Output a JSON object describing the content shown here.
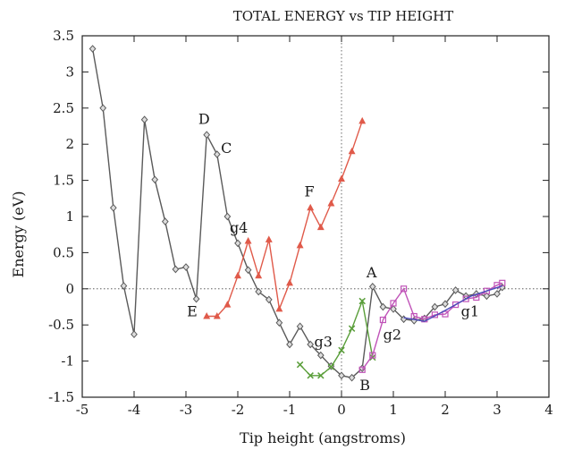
{
  "chart_data": {
    "type": "line",
    "title": "TOTAL ENERGY vs TIP HEIGHT",
    "xlabel": "Tip height (angstroms)",
    "ylabel": "Energy (eV)",
    "xlim": [
      -5,
      4
    ],
    "ylim": [
      -1.5,
      3.5
    ],
    "xticks": [
      -5,
      -4,
      -3,
      -2,
      -1,
      0,
      1,
      2,
      3,
      4
    ],
    "yticks": [
      -1.5,
      -1,
      -0.5,
      0,
      0.5,
      1,
      1.5,
      2,
      2.5,
      3,
      3.5
    ],
    "xtick_labels": [
      "-5",
      "-4",
      "-3",
      "-2",
      "-1",
      "0",
      "1",
      "2",
      "3",
      "4"
    ],
    "ytick_labels": [
      "-1.5",
      "-1",
      "-0.5",
      "0",
      "0.5",
      "1",
      "1.5",
      "2",
      "2.5",
      "3",
      "3.5"
    ],
    "zero_lines": true,
    "legend": "none",
    "series": [
      {
        "color": "#5a5a5a",
        "marker": "diamond",
        "points": [
          [
            -4.8,
            3.32
          ],
          [
            -4.6,
            2.5
          ],
          [
            -4.4,
            1.12
          ],
          [
            -4.2,
            0.04
          ],
          [
            -4.0,
            -0.63
          ],
          [
            -3.8,
            2.34
          ],
          [
            -3.6,
            1.51
          ],
          [
            -3.4,
            0.93
          ],
          [
            -3.2,
            0.27
          ],
          [
            -3.0,
            0.3
          ],
          [
            -2.8,
            -0.14
          ],
          [
            -2.6,
            2.13
          ],
          [
            -2.4,
            1.86
          ],
          [
            -2.2,
            1.0
          ],
          [
            -2.0,
            0.63
          ],
          [
            -1.8,
            0.26
          ],
          [
            -1.6,
            -0.04
          ],
          [
            -1.4,
            -0.15
          ],
          [
            -1.2,
            -0.47
          ],
          [
            -1.0,
            -0.77
          ],
          [
            -0.8,
            -0.52
          ],
          [
            -0.6,
            -0.77
          ],
          [
            -0.4,
            -0.92
          ],
          [
            -0.2,
            -1.07
          ],
          [
            0.0,
            -1.2
          ],
          [
            0.2,
            -1.23
          ],
          [
            0.4,
            -1.1
          ],
          [
            0.6,
            0.03
          ],
          [
            0.8,
            -0.25
          ],
          [
            1.0,
            -0.28
          ],
          [
            1.2,
            -0.42
          ],
          [
            1.4,
            -0.44
          ],
          [
            1.6,
            -0.41
          ],
          [
            1.8,
            -0.25
          ],
          [
            2.0,
            -0.21
          ],
          [
            2.2,
            -0.02
          ],
          [
            2.4,
            -0.1
          ],
          [
            2.6,
            -0.07
          ],
          [
            2.8,
            -0.1
          ],
          [
            3.0,
            -0.07
          ],
          [
            3.1,
            0.02
          ]
        ]
      },
      {
        "color": "#e05a4a",
        "marker": "triangle",
        "points": [
          [
            -2.6,
            -0.38
          ],
          [
            -2.4,
            -0.38
          ],
          [
            -2.2,
            -0.22
          ],
          [
            -2.0,
            0.18
          ],
          [
            -1.8,
            0.66
          ],
          [
            -1.6,
            0.18
          ],
          [
            -1.4,
            0.68
          ],
          [
            -1.2,
            -0.28
          ],
          [
            -1.0,
            0.08
          ],
          [
            -0.8,
            0.6
          ],
          [
            -0.6,
            1.12
          ],
          [
            -0.4,
            0.85
          ],
          [
            -0.2,
            1.18
          ],
          [
            0.0,
            1.52
          ],
          [
            0.2,
            1.9
          ],
          [
            0.4,
            2.32
          ]
        ]
      },
      {
        "color": "#5a9e3a",
        "marker": "x",
        "points": [
          [
            -0.8,
            -1.05
          ],
          [
            -0.6,
            -1.2
          ],
          [
            -0.4,
            -1.2
          ],
          [
            -0.2,
            -1.08
          ],
          [
            0.0,
            -0.85
          ],
          [
            0.2,
            -0.55
          ],
          [
            0.4,
            -0.17
          ],
          [
            0.6,
            -0.95
          ]
        ]
      },
      {
        "color": "#c053b8",
        "marker": "square",
        "points": [
          [
            0.4,
            -1.12
          ],
          [
            0.6,
            -0.92
          ],
          [
            0.8,
            -0.43
          ],
          [
            1.0,
            -0.2
          ],
          [
            1.2,
            0.0
          ],
          [
            1.4,
            -0.38
          ],
          [
            1.6,
            -0.42
          ],
          [
            1.8,
            -0.36
          ],
          [
            2.0,
            -0.35
          ],
          [
            2.2,
            -0.22
          ],
          [
            2.4,
            -0.14
          ],
          [
            2.6,
            -0.12
          ],
          [
            2.8,
            -0.03
          ],
          [
            3.0,
            0.05
          ],
          [
            3.1,
            0.08
          ]
        ]
      },
      {
        "color": "#4a4ab8",
        "marker": "none",
        "points": [
          [
            1.2,
            -0.4
          ],
          [
            1.6,
            -0.45
          ],
          [
            2.0,
            -0.3
          ],
          [
            2.5,
            -0.1
          ],
          [
            3.1,
            0.04
          ]
        ]
      }
    ],
    "annotations": [
      {
        "text": "D",
        "x": -2.65,
        "y": 2.28
      },
      {
        "text": "C",
        "x": -2.22,
        "y": 1.88
      },
      {
        "text": "g4",
        "x": -1.98,
        "y": 0.78
      },
      {
        "text": "F",
        "x": -0.62,
        "y": 1.28
      },
      {
        "text": "E",
        "x": -2.88,
        "y": -0.38
      },
      {
        "text": "A",
        "x": 0.58,
        "y": 0.16
      },
      {
        "text": "g3",
        "x": -0.35,
        "y": -0.8
      },
      {
        "text": "B",
        "x": 0.45,
        "y": -1.4
      },
      {
        "text": "g2",
        "x": 0.98,
        "y": -0.7
      },
      {
        "text": "g1",
        "x": 2.48,
        "y": -0.38
      }
    ]
  }
}
